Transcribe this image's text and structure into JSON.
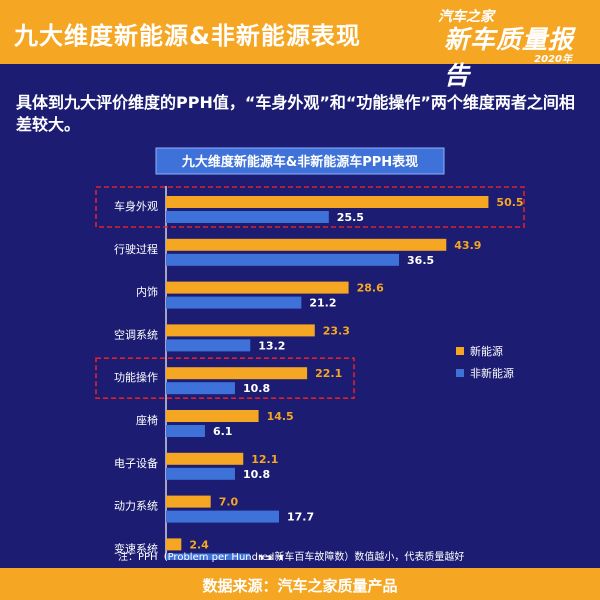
{
  "header": {
    "title": "九大维度新能源&非新能源表现"
  },
  "logo": {
    "top": "汽车之家",
    "main": "新车质量报告",
    "year": "2020年"
  },
  "subtitle": "具体到九大评价维度的PPH值，“车身外观”和“功能操作”两个维度两者之间相差较大。",
  "note": "注：PPH（Problem per Hundred新车百车故障数）数值越小，代表质量越好",
  "footer": {
    "source": "数据来源：汽车之家质量产品"
  },
  "colors": {
    "header_bg": "#f5a623",
    "background": "#1b1c72",
    "series_new": "#f5a623",
    "series_non": "#3f72d8"
  },
  "chart_data": {
    "type": "bar",
    "orientation": "horizontal",
    "title": "九大维度新能源车&非新能源车PPH表现",
    "categories": [
      "车身外观",
      "行驶过程",
      "内饰",
      "空调系统",
      "功能操作",
      "座椅",
      "电子设备",
      "动力系统",
      "变速系统"
    ],
    "series": [
      {
        "name": "新能源",
        "values": [
          50.5,
          43.9,
          28.6,
          23.3,
          22.1,
          14.5,
          12.1,
          7.0,
          2.4
        ]
      },
      {
        "name": "非新能源",
        "values": [
          25.5,
          36.5,
          21.2,
          13.2,
          10.8,
          6.1,
          10.8,
          17.7,
          13.1
        ]
      }
    ],
    "value_labels": [
      [
        "50.5",
        "43.9",
        "28.6",
        "23.3",
        "22.1",
        "14.5",
        "12.1",
        "7.0",
        "2.4"
      ],
      [
        "25.5",
        "36.5",
        "21.2",
        "13.2",
        "10.8",
        "6.1",
        "10.8",
        "17.7",
        "13.1"
      ]
    ],
    "highlighted_categories": [
      "车身外观",
      "功能操作"
    ],
    "xlim": [
      0,
      52
    ],
    "legend_position": "right",
    "grid": false
  }
}
